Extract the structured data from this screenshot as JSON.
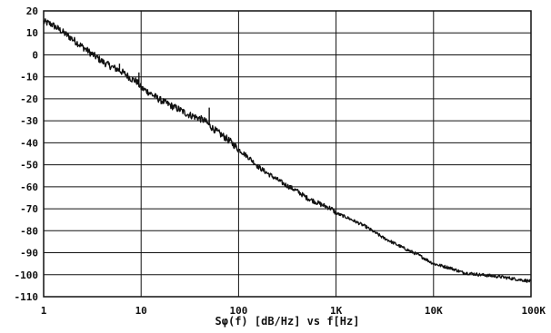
{
  "chart_data": {
    "type": "line",
    "title": "",
    "xlabel": "Sφ(f) [dB/Hz] vs f[Hz]",
    "ylabel": "",
    "x_scale": "log",
    "xlim": [
      1,
      100000
    ],
    "ylim": [
      -110,
      20
    ],
    "grid": true,
    "x_ticks": [
      1,
      10,
      100,
      1000,
      10000,
      100000
    ],
    "x_tick_labels": [
      "1",
      "10",
      "100",
      "1K",
      "10K",
      "100K"
    ],
    "y_ticks": [
      20,
      10,
      0,
      -10,
      -20,
      -30,
      -40,
      -50,
      -60,
      -70,
      -80,
      -90,
      -100,
      -110
    ],
    "y_tick_labels": [
      "20",
      "10",
      "0",
      "-10",
      "-20",
      "-30",
      "-40",
      "-50",
      "-60",
      "-70",
      "-80",
      "-90",
      "-100",
      "-110"
    ],
    "series": [
      {
        "name": "",
        "color": "#111111",
        "x": [
          1,
          1.2,
          1.5,
          2,
          3,
          4,
          5,
          6,
          7,
          8,
          9,
          10,
          12,
          15,
          20,
          25,
          30,
          35,
          40,
          45,
          50,
          60,
          70,
          80,
          90,
          100,
          130,
          160,
          200,
          300,
          400,
          500,
          700,
          900,
          1000,
          1300,
          2000,
          3000,
          5000,
          7000,
          10000,
          15000,
          20000,
          30000,
          50000,
          70000,
          100000
        ],
        "y": [
          15,
          14,
          11,
          7,
          1,
          -3,
          -5.5,
          -7,
          -9,
          -11,
          -12,
          -15,
          -17,
          -20,
          -23,
          -25,
          -27,
          -28,
          -29,
          -30,
          -32,
          -35,
          -37,
          -39,
          -41,
          -43,
          -47,
          -51,
          -54,
          -59,
          -62,
          -65,
          -68,
          -70,
          -72,
          -74,
          -78,
          -83,
          -88,
          -91,
          -95,
          -97,
          -99,
          -100,
          -101,
          -102,
          -103
        ]
      }
    ],
    "spikes": [
      {
        "x": 6,
        "y": -4
      },
      {
        "x": 9.5,
        "y": -8
      },
      {
        "x": 50,
        "y": -24
      }
    ]
  }
}
